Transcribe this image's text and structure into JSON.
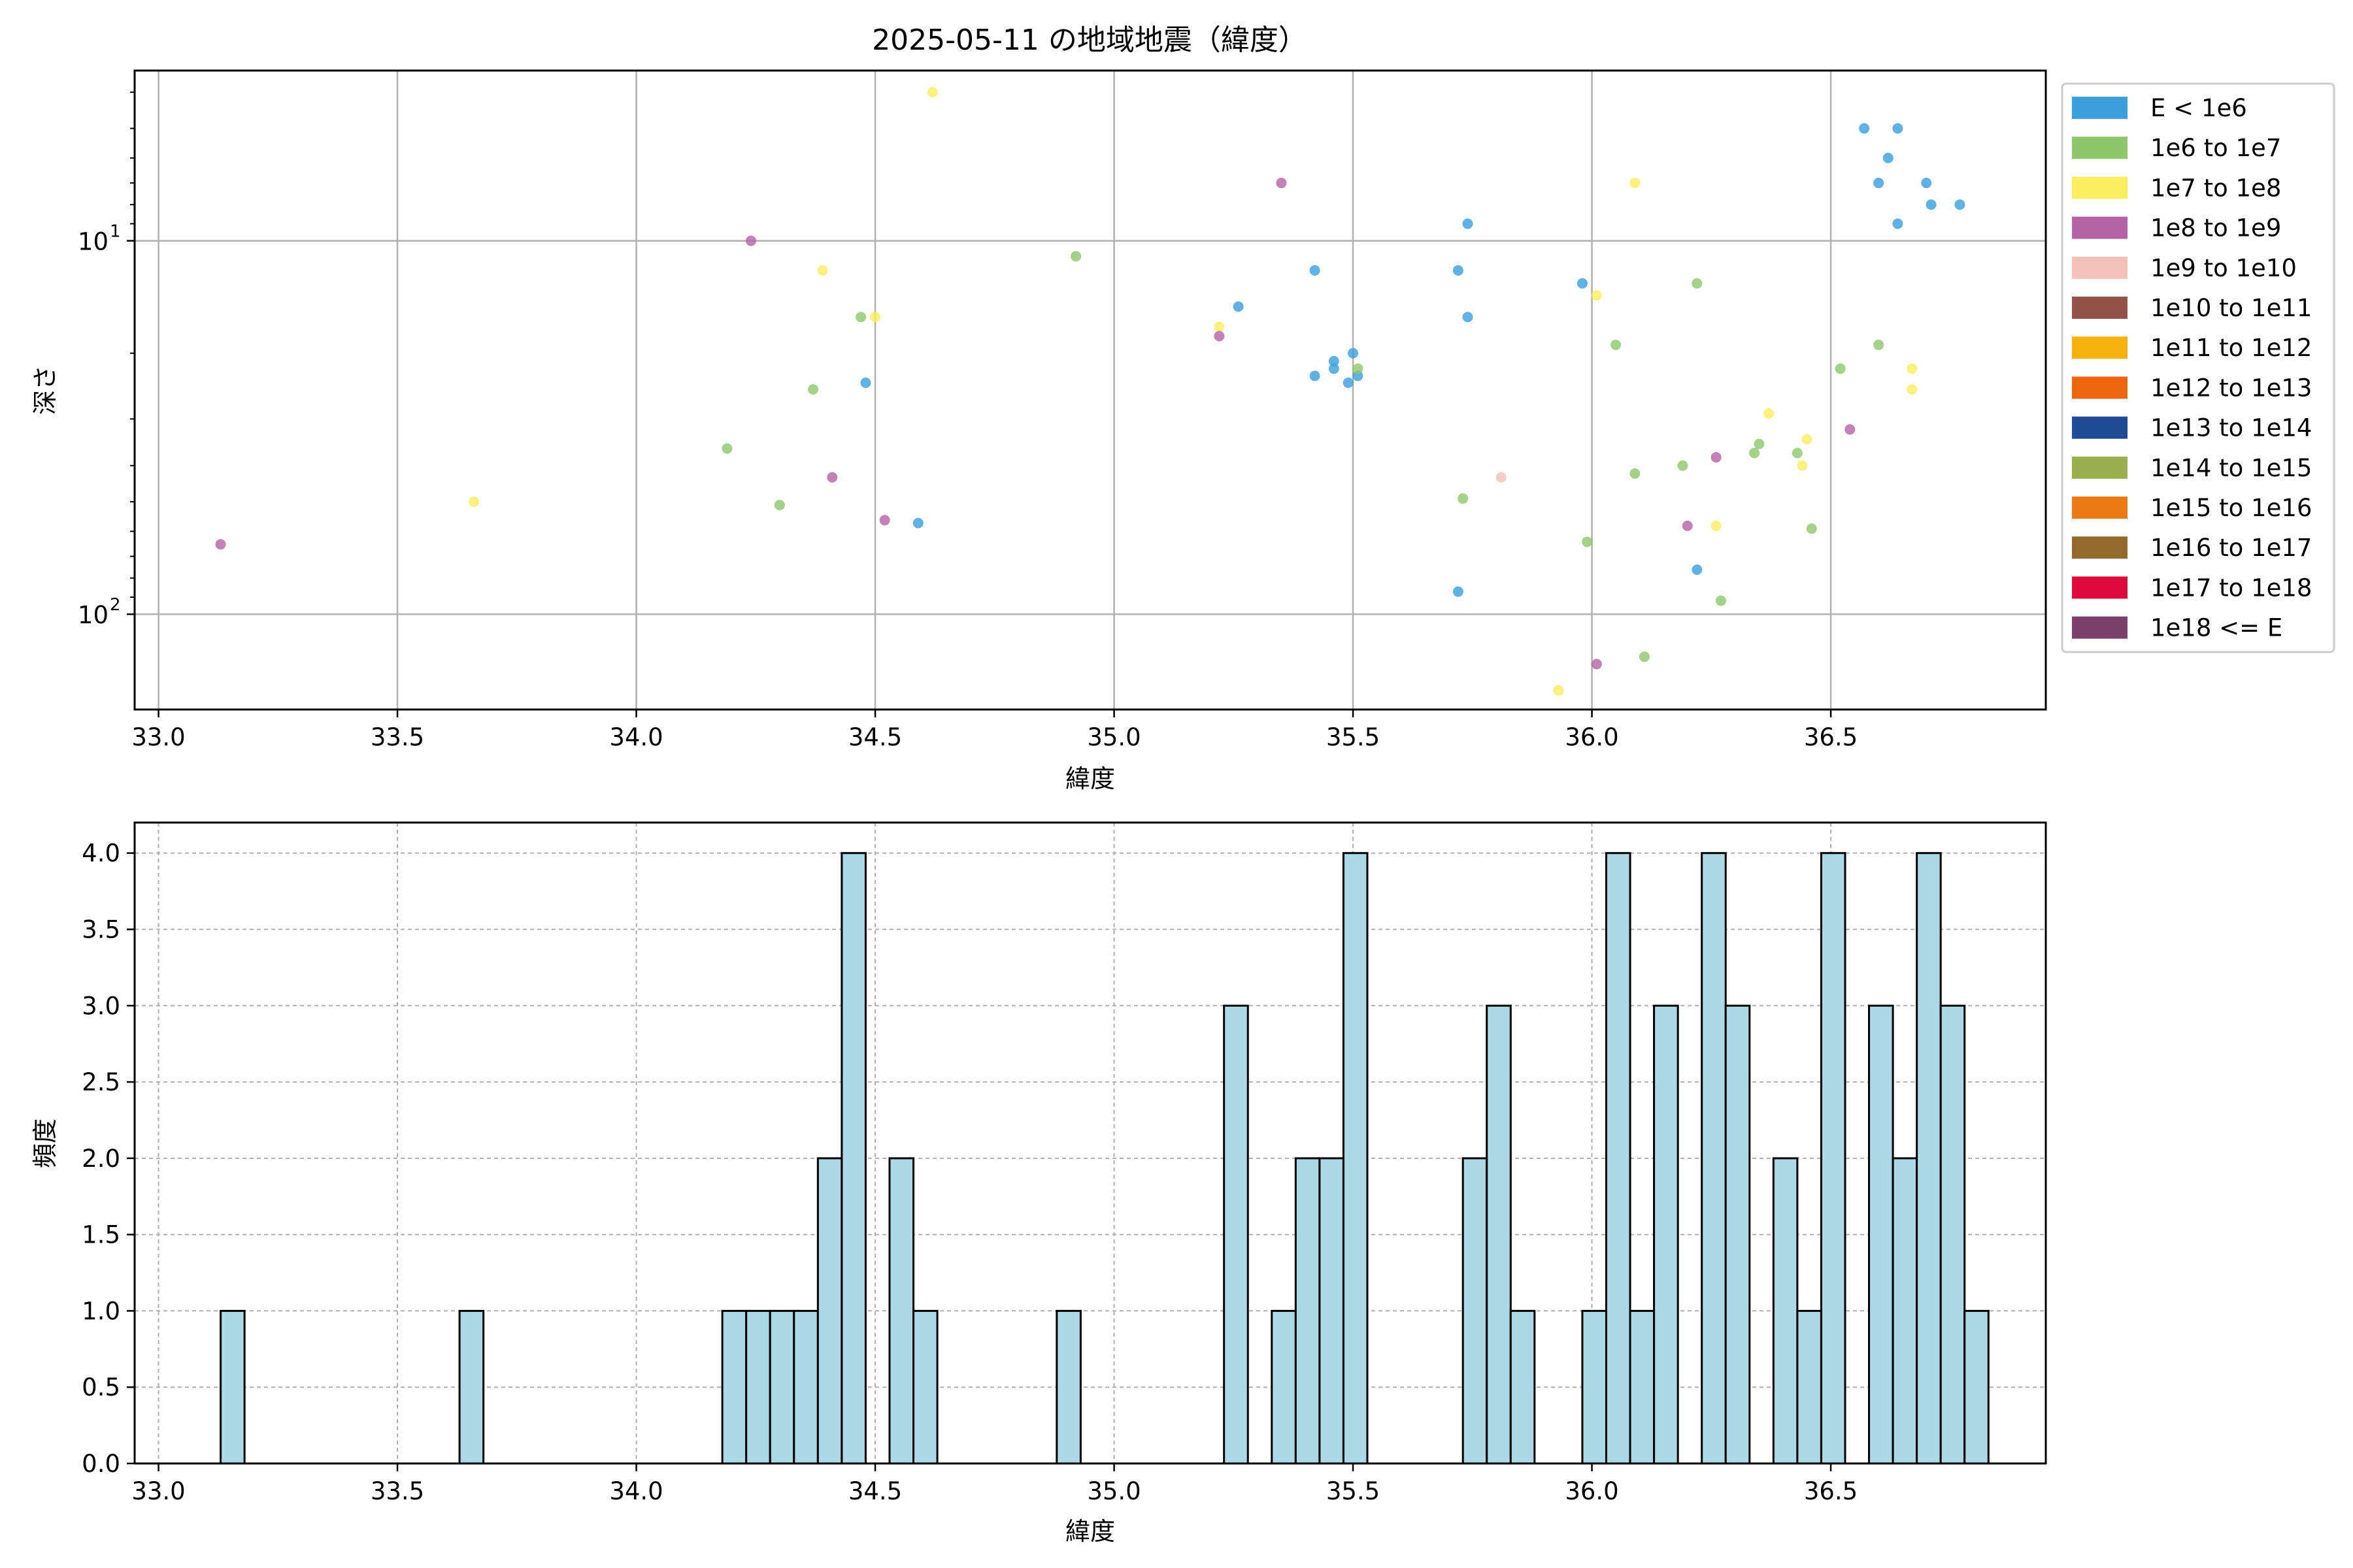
{
  "colors": {
    "grid": "#b0b0b0",
    "axes": "#000000",
    "hist_fill": "#add8e6",
    "hist_edge": "#000000",
    "legend_border": "#cccccc"
  },
  "chart_data": [
    {
      "type": "scatter",
      "title": "2025-05-11 の地域地震（緯度）",
      "xlabel": "緯度",
      "ylabel": "深さ",
      "xlim": [
        32.95,
        36.95
      ],
      "ylim": [
        180,
        3.5
      ],
      "yscale": "log",
      "y_inverted": true,
      "xticks": [
        33.0,
        33.5,
        34.0,
        34.5,
        35.0,
        35.5,
        36.0,
        36.5
      ],
      "xtick_labels": [
        "33.0",
        "33.5",
        "34.0",
        "34.5",
        "35.0",
        "35.5",
        "36.0",
        "36.5"
      ],
      "yticks": [
        {
          "value": 10,
          "base": "10",
          "exp": "1"
        },
        {
          "value": 100,
          "base": "10",
          "exp": "2"
        }
      ],
      "grid": true,
      "legend_position": "outside-right",
      "legend": [
        {
          "label": "E < 1e6",
          "color": "#3a9fdc"
        },
        {
          "label": "1e6 to 1e7",
          "color": "#8ec76b"
        },
        {
          "label": "1e7 to 1e8",
          "color": "#fbee5f"
        },
        {
          "label": "1e8 to 1e9",
          "color": "#b463a4"
        },
        {
          "label": "1e9 to 1e10",
          "color": "#f3c1b8"
        },
        {
          "label": "1e10 to 1e11",
          "color": "#93524a"
        },
        {
          "label": "1e11 to 1e12",
          "color": "#f6b20f"
        },
        {
          "label": "1e12 to 1e13",
          "color": "#ed650e"
        },
        {
          "label": "1e13 to 1e14",
          "color": "#1e4b93"
        },
        {
          "label": "1e14 to 1e15",
          "color": "#9baf4f"
        },
        {
          "label": "1e15 to 1e16",
          "color": "#ec7a14"
        },
        {
          "label": "1e16 to 1e17",
          "color": "#936a2b"
        },
        {
          "label": "1e17 to 1e18",
          "color": "#dc0b3c"
        },
        {
          "label": "1e18 <= E",
          "color": "#7b3f6c"
        }
      ],
      "points": [
        {
          "x": 34.59,
          "y": 57,
          "c": 0
        },
        {
          "x": 34.48,
          "y": 24,
          "c": 0
        },
        {
          "x": 35.26,
          "y": 15,
          "c": 0
        },
        {
          "x": 35.42,
          "y": 12,
          "c": 0
        },
        {
          "x": 35.42,
          "y": 23,
          "c": 0
        },
        {
          "x": 35.46,
          "y": 21,
          "c": 0
        },
        {
          "x": 35.46,
          "y": 22,
          "c": 0
        },
        {
          "x": 35.49,
          "y": 24,
          "c": 0
        },
        {
          "x": 35.5,
          "y": 20,
          "c": 0
        },
        {
          "x": 35.51,
          "y": 23,
          "c": 0
        },
        {
          "x": 35.72,
          "y": 12,
          "c": 0
        },
        {
          "x": 35.74,
          "y": 9,
          "c": 0
        },
        {
          "x": 35.74,
          "y": 16,
          "c": 0
        },
        {
          "x": 35.72,
          "y": 87,
          "c": 0
        },
        {
          "x": 35.98,
          "y": 13,
          "c": 0
        },
        {
          "x": 36.22,
          "y": 76,
          "c": 0
        },
        {
          "x": 36.57,
          "y": 5,
          "c": 0
        },
        {
          "x": 36.64,
          "y": 5,
          "c": 0
        },
        {
          "x": 36.62,
          "y": 6,
          "c": 0
        },
        {
          "x": 36.6,
          "y": 7,
          "c": 0
        },
        {
          "x": 36.64,
          "y": 9,
          "c": 0
        },
        {
          "x": 36.7,
          "y": 7,
          "c": 0
        },
        {
          "x": 36.71,
          "y": 8,
          "c": 0
        },
        {
          "x": 36.77,
          "y": 8,
          "c": 0
        },
        {
          "x": 34.19,
          "y": 36,
          "c": 1
        },
        {
          "x": 34.3,
          "y": 51,
          "c": 1
        },
        {
          "x": 34.37,
          "y": 25,
          "c": 1
        },
        {
          "x": 34.47,
          "y": 16,
          "c": 1
        },
        {
          "x": 34.92,
          "y": 11,
          "c": 1
        },
        {
          "x": 35.51,
          "y": 22,
          "c": 1
        },
        {
          "x": 35.73,
          "y": 49,
          "c": 1
        },
        {
          "x": 35.99,
          "y": 64,
          "c": 1
        },
        {
          "x": 36.05,
          "y": 19,
          "c": 1
        },
        {
          "x": 36.09,
          "y": 42,
          "c": 1
        },
        {
          "x": 36.11,
          "y": 130,
          "c": 1
        },
        {
          "x": 36.19,
          "y": 40,
          "c": 1
        },
        {
          "x": 36.22,
          "y": 13,
          "c": 1
        },
        {
          "x": 36.27,
          "y": 92,
          "c": 1
        },
        {
          "x": 36.34,
          "y": 37,
          "c": 1
        },
        {
          "x": 36.35,
          "y": 35,
          "c": 1
        },
        {
          "x": 36.43,
          "y": 37,
          "c": 1
        },
        {
          "x": 36.46,
          "y": 59,
          "c": 1
        },
        {
          "x": 36.52,
          "y": 22,
          "c": 1
        },
        {
          "x": 36.6,
          "y": 19,
          "c": 1
        },
        {
          "x": 33.66,
          "y": 50,
          "c": 2
        },
        {
          "x": 34.39,
          "y": 12,
          "c": 2
        },
        {
          "x": 34.5,
          "y": 16,
          "c": 2
        },
        {
          "x": 34.62,
          "y": 4,
          "c": 2
        },
        {
          "x": 35.22,
          "y": 17,
          "c": 2
        },
        {
          "x": 35.93,
          "y": 160,
          "c": 2
        },
        {
          "x": 36.01,
          "y": 14,
          "c": 2
        },
        {
          "x": 36.09,
          "y": 7,
          "c": 2
        },
        {
          "x": 36.26,
          "y": 58,
          "c": 2
        },
        {
          "x": 36.37,
          "y": 29,
          "c": 2
        },
        {
          "x": 36.44,
          "y": 40,
          "c": 2
        },
        {
          "x": 36.45,
          "y": 34,
          "c": 2
        },
        {
          "x": 36.67,
          "y": 22,
          "c": 2
        },
        {
          "x": 36.67,
          "y": 25,
          "c": 2
        },
        {
          "x": 33.13,
          "y": 65,
          "c": 3
        },
        {
          "x": 34.24,
          "y": 10,
          "c": 3
        },
        {
          "x": 34.41,
          "y": 43,
          "c": 3
        },
        {
          "x": 34.52,
          "y": 56,
          "c": 3
        },
        {
          "x": 35.22,
          "y": 18,
          "c": 3
        },
        {
          "x": 35.35,
          "y": 7,
          "c": 3
        },
        {
          "x": 36.01,
          "y": 136,
          "c": 3
        },
        {
          "x": 36.2,
          "y": 58,
          "c": 3
        },
        {
          "x": 36.26,
          "y": 38,
          "c": 3
        },
        {
          "x": 36.54,
          "y": 32,
          "c": 3
        },
        {
          "x": 35.81,
          "y": 43,
          "c": 4
        }
      ]
    },
    {
      "type": "bar",
      "xlabel": "緯度",
      "ylabel": "頻度",
      "xlim": [
        32.95,
        36.95
      ],
      "ylim": [
        0,
        4.2
      ],
      "xticks": [
        33.0,
        33.5,
        34.0,
        34.5,
        35.0,
        35.5,
        36.0,
        36.5
      ],
      "xtick_labels": [
        "33.0",
        "33.5",
        "34.0",
        "34.5",
        "35.0",
        "35.5",
        "36.0",
        "36.5"
      ],
      "yticks": [
        0.0,
        0.5,
        1.0,
        1.5,
        2.0,
        2.5,
        3.0,
        3.5,
        4.0
      ],
      "ytick_labels": [
        "0.0",
        "0.5",
        "1.0",
        "1.5",
        "2.0",
        "2.5",
        "3.0",
        "3.5",
        "4.0"
      ],
      "grid": true,
      "bin_start": 33.13,
      "bin_width": 0.05,
      "counts": [
        1,
        0,
        0,
        0,
        0,
        0,
        0,
        0,
        0,
        0,
        1,
        0,
        0,
        0,
        0,
        0,
        0,
        0,
        0,
        0,
        0,
        1,
        1,
        1,
        1,
        2,
        4,
        0,
        2,
        1,
        0,
        0,
        0,
        0,
        0,
        1,
        0,
        0,
        0,
        0,
        0,
        0,
        3,
        0,
        1,
        2,
        2,
        4,
        0,
        0,
        0,
        0,
        2,
        3,
        1,
        0,
        0,
        1,
        4,
        1,
        3,
        0,
        4,
        3,
        0,
        2,
        1,
        4,
        0,
        3,
        2,
        4,
        3,
        1
      ]
    }
  ]
}
